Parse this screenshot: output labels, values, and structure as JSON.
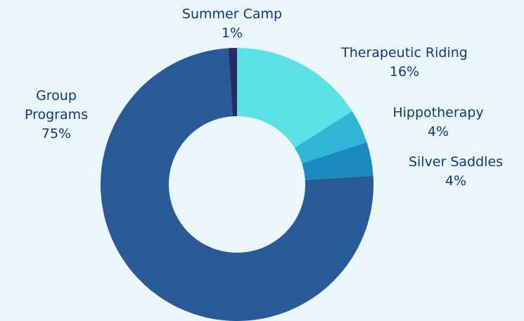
{
  "chart_data": {
    "type": "donut",
    "categories": [
      "Therapeutic Riding",
      "Hippotherapy",
      "Silver Saddles",
      "Group Programs",
      "Summer Camp"
    ],
    "values": [
      16,
      4,
      4,
      75,
      1
    ],
    "value_labels": [
      "16%",
      "4%",
      "4%",
      "75%",
      "1%"
    ],
    "colors": [
      "#5ce1e6",
      "#2fb5d6",
      "#1b8bbf",
      "#285a98",
      "#272a63"
    ]
  }
}
